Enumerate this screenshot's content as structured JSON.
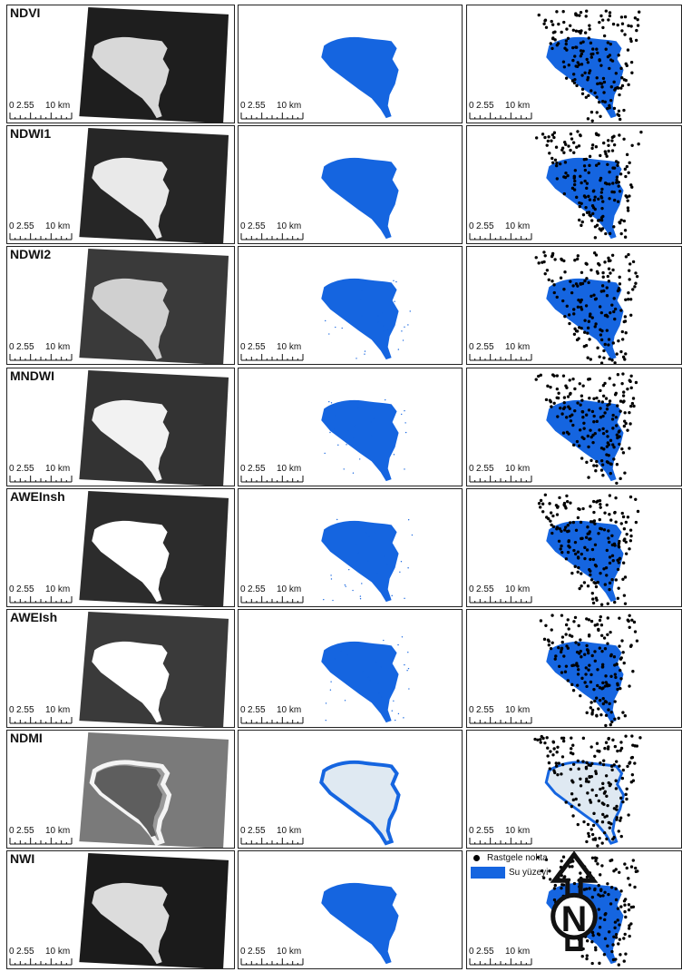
{
  "colors": {
    "water": "#1565e0",
    "points": "#000000",
    "ndmi_fill": "#dfe9f2"
  },
  "scale_bar": {
    "labels": [
      "0",
      "2.5",
      "5",
      "10 km"
    ]
  },
  "legend": {
    "point_label": "Rastgele nokta",
    "water_label": "Su yüzeyi"
  },
  "north_arrow": {
    "letter": "N"
  },
  "rows": [
    {
      "index": "NDVI"
    },
    {
      "index": "NDWI1"
    },
    {
      "index": "NDWI2"
    },
    {
      "index": "MNDWI"
    },
    {
      "index": "AWEInsh"
    },
    {
      "index": "AWEIsh"
    },
    {
      "index": "NDMI"
    },
    {
      "index": "NWI"
    }
  ]
}
